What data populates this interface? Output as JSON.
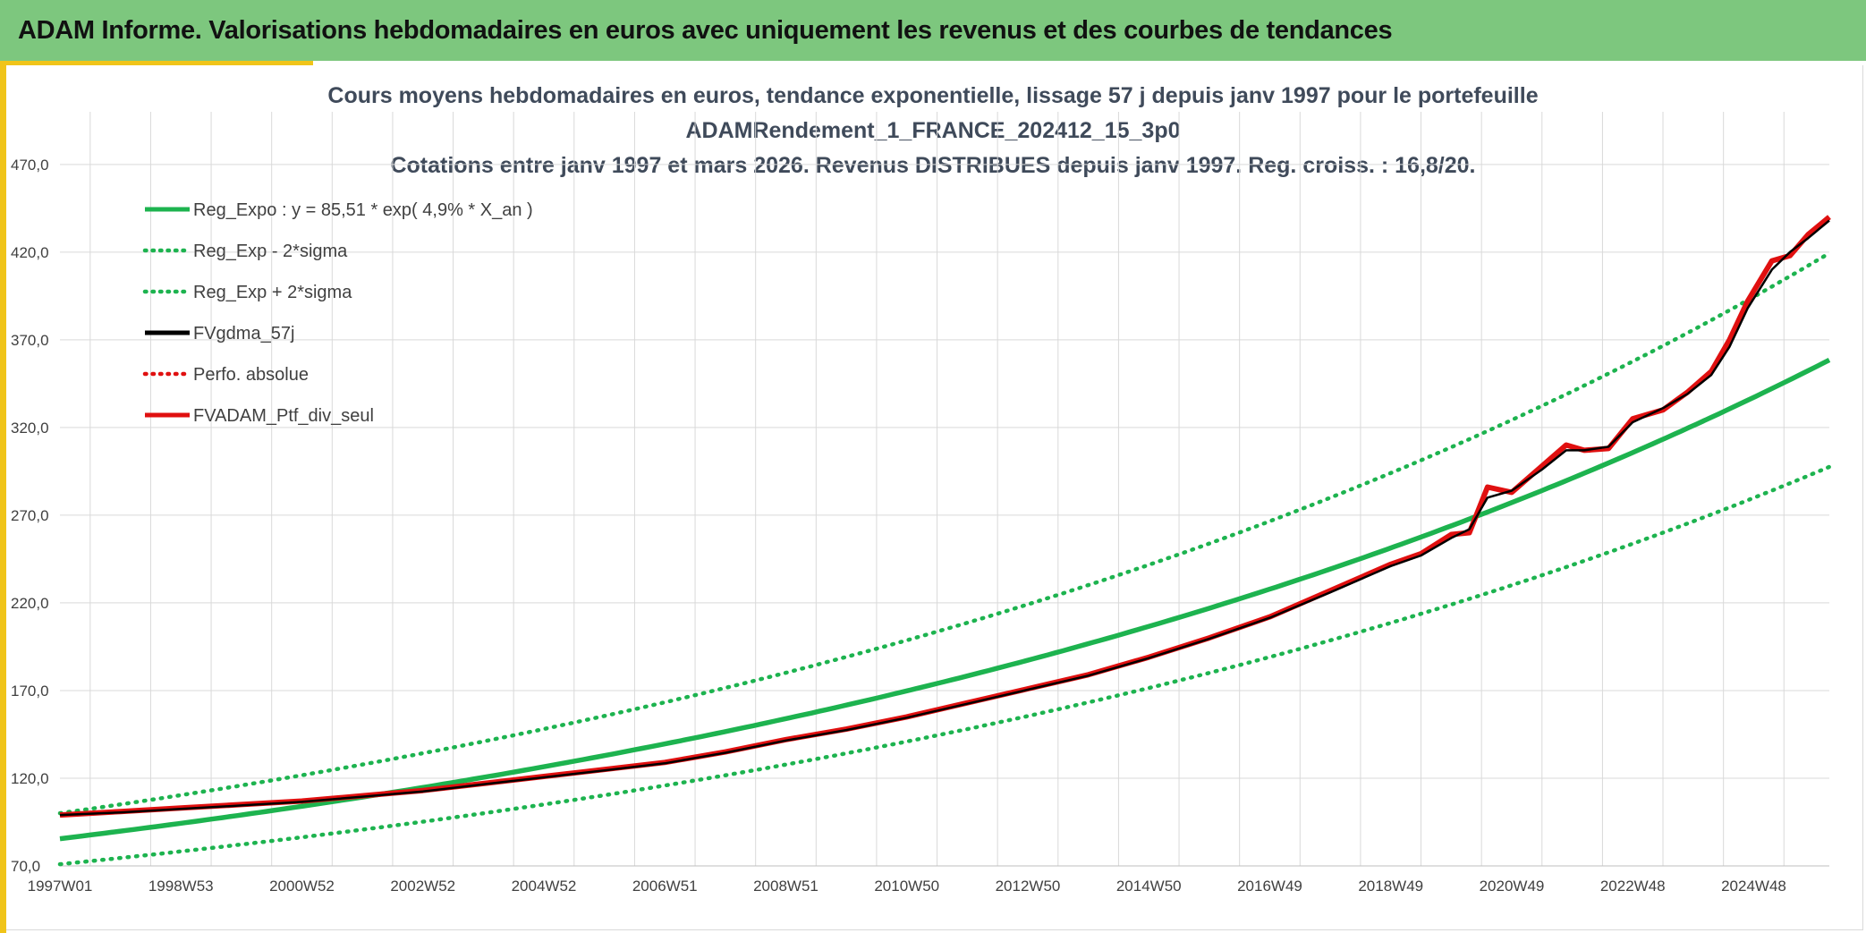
{
  "banner": {
    "title": "ADAM Informe. Valorisations hebdomadaires en euros avec uniquement les revenus et des courbes de tendances"
  },
  "colors": {
    "banner_bg": "#7dc77e",
    "accent": "#f0c419",
    "reg_green": "#1db34f",
    "gdma_black": "#000000",
    "adam_red": "#e01010",
    "grid": "#d9d9d9"
  },
  "chart_data": {
    "type": "line",
    "title_lines": [
      "Cours moyens hebdomadaires en euros, tendance exponentielle, lissage 57 j depuis janv 1997 pour le portefeuille",
      "ADAMRendement_1_FRANCE_202412_15_3p0",
      "Cotations entre janv 1997 et mars 2026. Revenus DISTRIBUES depuis janv 1997. Reg. croiss. : 16,8/20."
    ],
    "x_tick_labels": [
      "1997W01",
      "1998W53",
      "2000W52",
      "2002W52",
      "2004W52",
      "2006W51",
      "2008W51",
      "2010W50",
      "2012W50",
      "2014W50",
      "2016W49",
      "2018W49",
      "2020W49",
      "2022W48",
      "2024W48"
    ],
    "x_tick_years": [
      1997.0,
      1999.0,
      2001.0,
      2003.0,
      2005.0,
      2007.0,
      2009.0,
      2011.0,
      2013.0,
      2015.0,
      2017.0,
      2019.0,
      2021.0,
      2023.0,
      2025.0
    ],
    "xlim": [
      1997.0,
      2026.25
    ],
    "ylim": [
      70,
      500
    ],
    "y_ticks": [
      70.0,
      120.0,
      170.0,
      220.0,
      270.0,
      320.0,
      370.0,
      420.0,
      470.0
    ],
    "y_tick_labels": [
      "70,0",
      "120,0",
      "170,0",
      "220,0",
      "270,0",
      "320,0",
      "370,0",
      "420,0",
      "470,0"
    ],
    "grid": true,
    "legend_position": "top-left",
    "regression": {
      "base": 85.51,
      "rate": 0.049,
      "sigma_factor": 0.17
    },
    "legend": [
      {
        "name": "Reg_Expo : y = 85,51 * exp( 4,9% *  X_an )",
        "style": "solid",
        "color": "#1db34f"
      },
      {
        "name": "Reg_Exp - 2*sigma",
        "style": "dotted",
        "color": "#1db34f"
      },
      {
        "name": "Reg_Exp + 2*sigma",
        "style": "dotted",
        "color": "#1db34f"
      },
      {
        "name": "FVgdma_57j",
        "style": "solid",
        "color": "#000000"
      },
      {
        "name": "Perfo. absolue",
        "style": "dotted",
        "color": "#e01010"
      },
      {
        "name": "FVADAM_Ptf_div_seul",
        "style": "solid",
        "color": "#e01010"
      }
    ],
    "series": [
      {
        "name": "FVADAM_Ptf_div_seul",
        "x": [
          1997.0,
          1998.0,
          1999.0,
          2000.0,
          2001.0,
          2002.0,
          2003.0,
          2004.0,
          2005.0,
          2006.0,
          2007.0,
          2008.0,
          2009.0,
          2010.0,
          2011.0,
          2012.0,
          2013.0,
          2014.0,
          2015.0,
          2016.0,
          2017.0,
          2018.0,
          2019.0,
          2019.5,
          2020.0,
          2020.3,
          2020.6,
          2021.0,
          2021.5,
          2021.9,
          2022.2,
          2022.6,
          2023.0,
          2023.5,
          2023.9,
          2024.3,
          2024.6,
          2024.9,
          2025.3,
          2025.6,
          2025.9,
          2026.25
        ],
        "y": [
          99,
          101,
          103,
          105,
          107,
          110,
          113,
          117,
          121,
          125,
          129,
          135,
          142,
          148,
          155,
          163,
          171,
          179,
          189,
          200,
          212,
          227,
          242,
          248,
          259,
          260,
          286,
          283,
          298,
          310,
          307,
          308,
          325,
          330,
          340,
          352,
          370,
          392,
          415,
          418,
          430,
          440
        ]
      },
      {
        "name": "FVgdma_57j",
        "x": [
          1997.0,
          1998.0,
          1999.0,
          2000.0,
          2001.0,
          2002.0,
          2003.0,
          2004.0,
          2005.0,
          2006.0,
          2007.0,
          2008.0,
          2009.0,
          2010.0,
          2011.0,
          2012.0,
          2013.0,
          2014.0,
          2015.0,
          2016.0,
          2017.0,
          2018.0,
          2019.0,
          2019.5,
          2020.0,
          2020.3,
          2020.6,
          2021.0,
          2021.5,
          2021.9,
          2022.2,
          2022.6,
          2023.0,
          2023.5,
          2023.9,
          2024.3,
          2024.6,
          2024.9,
          2025.3,
          2025.6,
          2025.9,
          2026.25
        ],
        "y": [
          99,
          100.5,
          102.5,
          104.5,
          106.5,
          109.5,
          112.5,
          116.5,
          120.5,
          124.5,
          128.5,
          134.5,
          141.5,
          147.5,
          154.5,
          162.5,
          170.5,
          178.5,
          188.5,
          199.5,
          211.5,
          226,
          241,
          247,
          257,
          262,
          280,
          284,
          296,
          307,
          307,
          309,
          323,
          331,
          339,
          350,
          366,
          388,
          410,
          420,
          428,
          438
        ]
      }
    ]
  }
}
